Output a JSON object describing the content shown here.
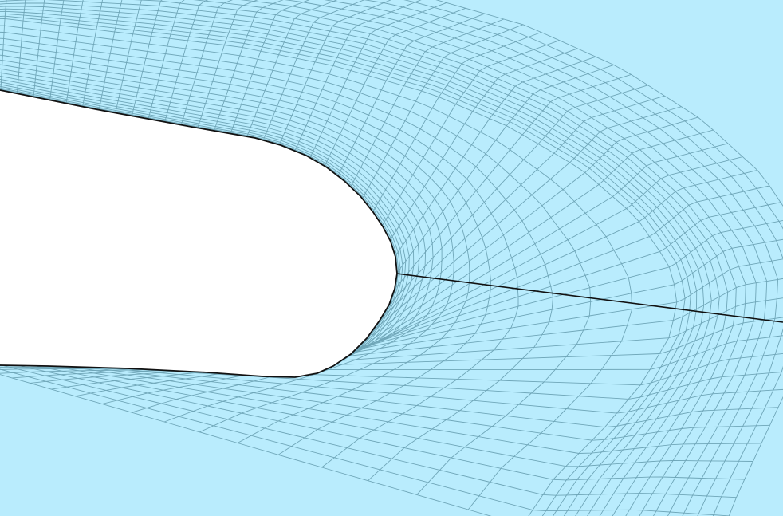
{
  "colors": {
    "mesh_fill": "#b9ecfd",
    "grid_line": "#6fa6b8",
    "boundary": "#111111",
    "body": "#ffffff"
  }
}
